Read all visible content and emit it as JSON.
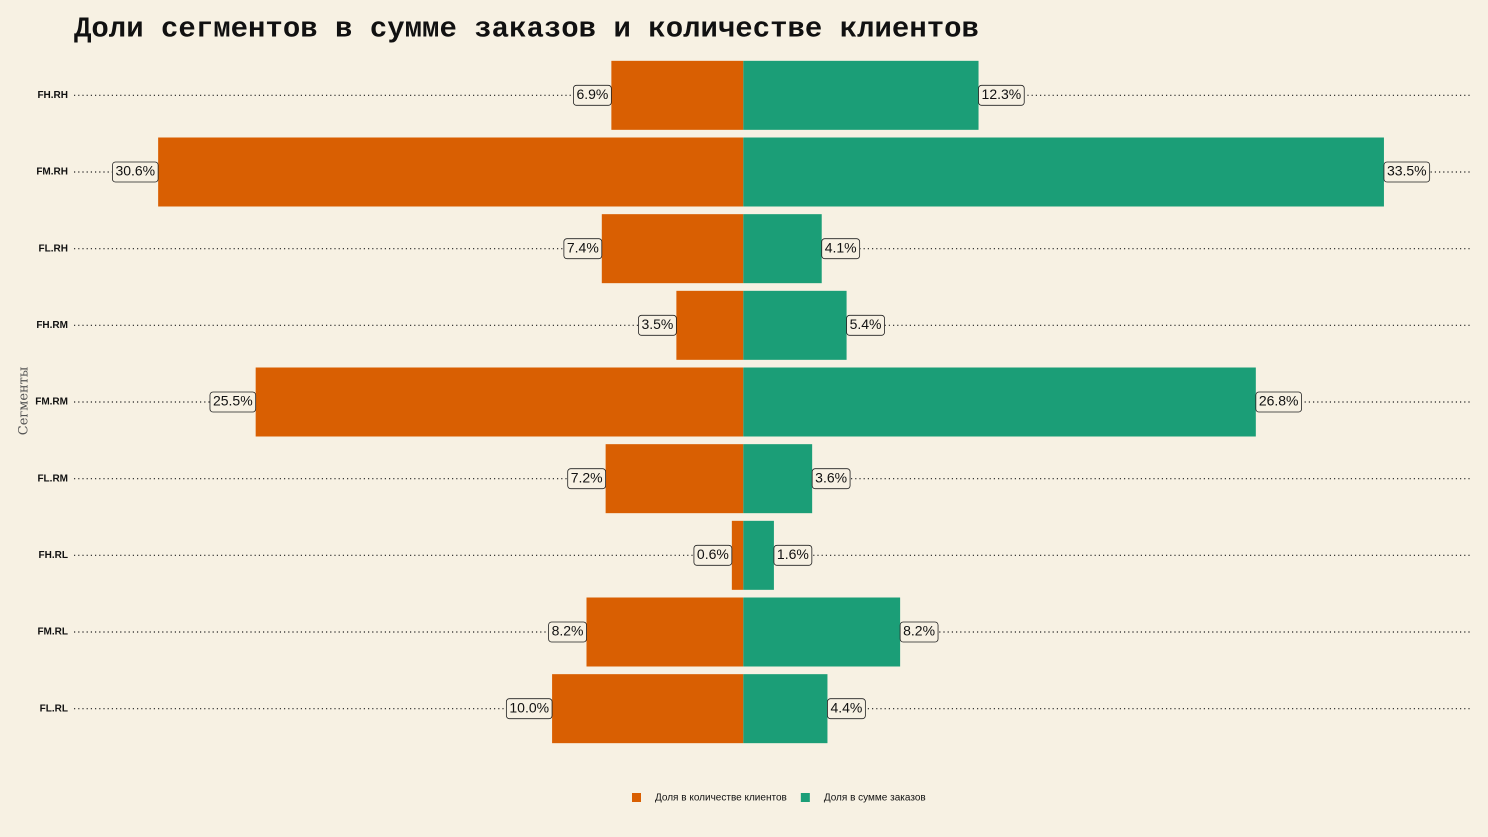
{
  "chart_data": {
    "type": "diverging-bar",
    "title": "Доли сегментов в сумме заказов и количестве клиентов",
    "y_label": "Сегменты",
    "categories": [
      "FH.RH",
      "FM.RH",
      "FL.RH",
      "FH.RM",
      "FM.RM",
      "FL.RM",
      "FH.RL",
      "FM.RL",
      "FL.RL"
    ],
    "xlim": [
      -35,
      38
    ],
    "series": [
      {
        "name": "Доля в количестве клиентов",
        "color": "#d95f02",
        "side": "left",
        "values": [
          6.9,
          30.6,
          7.4,
          3.5,
          25.5,
          7.2,
          0.6,
          8.2,
          10.0
        ],
        "value_labels": [
          "6.9%",
          "30.6%",
          "7.4%",
          "3.5%",
          "25.5%",
          "7.2%",
          "0.6%",
          "8.2%",
          "10.0%"
        ]
      },
      {
        "name": "Доля в сумме заказов",
        "color": "#1b9e77",
        "side": "right",
        "values": [
          12.3,
          33.5,
          4.1,
          5.4,
          26.8,
          3.6,
          1.6,
          8.2,
          4.4
        ],
        "value_labels": [
          "12.3%",
          "33.5%",
          "4.1%",
          "5.4%",
          "26.8%",
          "3.6%",
          "1.6%",
          "8.2%",
          "4.4%"
        ]
      }
    ],
    "grid": true
  }
}
